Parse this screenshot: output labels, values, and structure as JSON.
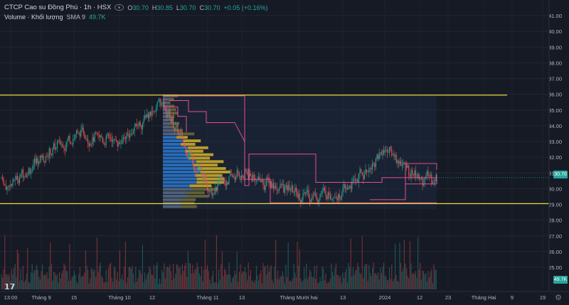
{
  "header": {
    "symbol_title": "CTCP Cao su Đồng Phú · 1h · HSX",
    "ohlc": [
      {
        "key": "O",
        "value": "30.70"
      },
      {
        "key": "H",
        "value": "30.85"
      },
      {
        "key": "L",
        "value": "30.70"
      },
      {
        "key": "C",
        "value": "30.70"
      }
    ],
    "change": "+0.05 (+0.16%)",
    "volume_label": "Volume · Khối lượng",
    "volume_sma": "SMA 9",
    "volume_value": "49.7K"
  },
  "colors": {
    "background": "#161a25",
    "up": "#26a69a",
    "down": "#ef5350",
    "support_resistance": "#e5d43a",
    "box_outline": "#e84f8c",
    "volume_profile_value_area": "#2a79d1",
    "volume_profile_outside": "#5a6b87",
    "volume_profile_poc": "#d5b22b"
  },
  "axis": {
    "y_ticks": [
      "41.00",
      "40.00",
      "39.00",
      "38.00",
      "37.00",
      "36.00",
      "35.00",
      "34.00",
      "33.00",
      "32.00",
      "31.00",
      "30.00",
      "29.00",
      "28.00",
      "27.00",
      "26.00",
      "25.00"
    ],
    "x_ticks": [
      "13:00",
      "Tháng 9",
      "15",
      "Tháng 10",
      "12",
      "Tháng 11",
      "13",
      "Tháng Mười hai",
      "13",
      "2024",
      "12",
      "23",
      "Tháng Hai",
      "9",
      "19"
    ],
    "current_price_tag": "30.70",
    "volume_tag": "49.7K"
  },
  "chart_data": {
    "type": "candlestick",
    "title": "CTCP Cao su Đồng Phú · 1h · HSX",
    "ylim": [
      24.5,
      41.5
    ],
    "x": [
      "13:00",
      "Tháng 9",
      "15",
      "Tháng 10",
      "12",
      "Tháng 11",
      "13",
      "Tháng Mười hai",
      "13",
      "2024",
      "12",
      "23",
      "Tháng Hai",
      "9",
      "19"
    ],
    "price_path": [
      {
        "t": "13:00",
        "price": 30.0
      },
      {
        "t": "Tháng 9",
        "price": 32.0
      },
      {
        "t": "15",
        "price": 33.5
      },
      {
        "t": "Tháng 10",
        "price": 33.0
      },
      {
        "t": "12",
        "price": 35.5
      },
      {
        "t": "Tháng 11",
        "price": 30.0
      },
      {
        "t": "13",
        "price": 31.0
      },
      {
        "t": "Tháng Mười hai",
        "price": 29.6
      },
      {
        "t": "13",
        "price": 29.8
      },
      {
        "t": "2024",
        "price": 32.5
      },
      {
        "t": "12",
        "price": 30.5
      },
      {
        "t": "23",
        "price": 30.7
      }
    ],
    "last_close": 30.7,
    "horizontal_levels": [
      35.95,
      29.05
    ],
    "volume_last": "49.7K",
    "grid": true
  }
}
